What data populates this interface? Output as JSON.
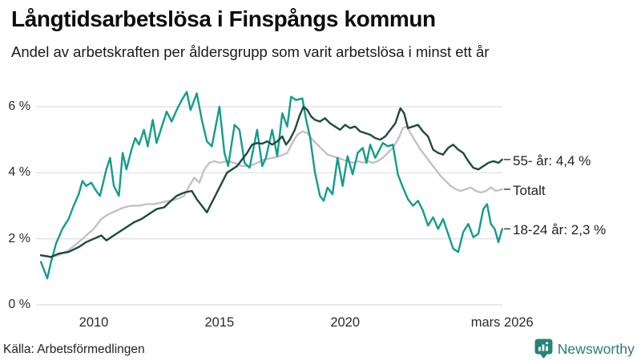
{
  "header": {
    "title": "Långtidsarbetslösa i Finspångs kommun",
    "subtitle": "Andel av arbetskraften per åldersgrupp som varit arbetslösa i minst ett år"
  },
  "footer": {
    "source": "Källa: Arbetsförmedlingen",
    "brand": "Newsworthy",
    "brand_color": "#277d76"
  },
  "chart_data": {
    "type": "line",
    "title": "Långtidsarbetslösa i Finspångs kommun",
    "subtitle": "Andel av arbetskraften per åldersgrupp som varit arbetslösa i minst ett år",
    "xlabel": "",
    "ylabel": "",
    "x_unit": "year (monthly observations)",
    "y_unit": "% av arbetskraften",
    "xlim": [
      2007.9,
      2026.25
    ],
    "ylim": [
      0,
      6.6
    ],
    "grid": "horizontal",
    "legend_position": "right-end-labels",
    "grid_color": "#dedee2",
    "yticks": [
      {
        "value": 0,
        "label": "0 %"
      },
      {
        "value": 2,
        "label": "2 %"
      },
      {
        "value": 4,
        "label": "4 %"
      },
      {
        "value": 6,
        "label": "6 %"
      }
    ],
    "xticks": [
      {
        "value": 2010,
        "label": "2010"
      },
      {
        "value": 2015,
        "label": "2015"
      },
      {
        "value": 2020,
        "label": "2020"
      },
      {
        "value": 2026.25,
        "label": "mars 2026"
      }
    ],
    "series": [
      {
        "name": "Totalt",
        "end_label": "Totalt",
        "end_value": 3.5,
        "color": "#c3c0cd",
        "points": [
          [
            2007.9,
            1.5
          ],
          [
            2008.3,
            1.45
          ],
          [
            2008.6,
            1.5
          ],
          [
            2009.0,
            1.65
          ],
          [
            2009.4,
            1.9
          ],
          [
            2009.7,
            2.1
          ],
          [
            2010.0,
            2.3
          ],
          [
            2010.3,
            2.6
          ],
          [
            2010.6,
            2.75
          ],
          [
            2010.9,
            2.85
          ],
          [
            2011.2,
            2.95
          ],
          [
            2011.5,
            3.0
          ],
          [
            2011.8,
            3.0
          ],
          [
            2012.1,
            3.05
          ],
          [
            2012.4,
            3.05
          ],
          [
            2012.7,
            3.1
          ],
          [
            2013.0,
            3.15
          ],
          [
            2013.3,
            3.2
          ],
          [
            2013.6,
            3.3
          ],
          [
            2013.8,
            3.6
          ],
          [
            2014.0,
            3.85
          ],
          [
            2014.2,
            3.7
          ],
          [
            2014.4,
            4.1
          ],
          [
            2014.6,
            4.3
          ],
          [
            2014.8,
            4.35
          ],
          [
            2015.0,
            4.3
          ],
          [
            2015.3,
            4.35
          ],
          [
            2015.6,
            4.3
          ],
          [
            2015.9,
            4.2
          ],
          [
            2016.2,
            4.2
          ],
          [
            2016.5,
            4.3
          ],
          [
            2016.8,
            4.4
          ],
          [
            2017.1,
            4.45
          ],
          [
            2017.4,
            4.5
          ],
          [
            2017.7,
            4.6
          ],
          [
            2017.9,
            4.9
          ],
          [
            2018.1,
            5.15
          ],
          [
            2018.3,
            5.25
          ],
          [
            2018.5,
            5.2
          ],
          [
            2018.7,
            5.0
          ],
          [
            2018.9,
            4.85
          ],
          [
            2019.1,
            4.7
          ],
          [
            2019.3,
            4.55
          ],
          [
            2019.5,
            4.5
          ],
          [
            2019.7,
            4.45
          ],
          [
            2019.9,
            4.4
          ],
          [
            2020.1,
            4.35
          ],
          [
            2020.3,
            4.3
          ],
          [
            2020.5,
            4.35
          ],
          [
            2020.7,
            4.3
          ],
          [
            2020.9,
            4.35
          ],
          [
            2021.1,
            4.3
          ],
          [
            2021.3,
            4.35
          ],
          [
            2021.5,
            4.45
          ],
          [
            2021.7,
            4.6
          ],
          [
            2021.9,
            4.75
          ],
          [
            2022.1,
            5.0
          ],
          [
            2022.3,
            5.35
          ],
          [
            2022.45,
            5.4
          ],
          [
            2022.6,
            5.2
          ],
          [
            2022.8,
            4.95
          ],
          [
            2023.0,
            4.7
          ],
          [
            2023.2,
            4.5
          ],
          [
            2023.4,
            4.3
          ],
          [
            2023.6,
            4.1
          ],
          [
            2023.8,
            3.9
          ],
          [
            2024.0,
            3.75
          ],
          [
            2024.2,
            3.6
          ],
          [
            2024.4,
            3.5
          ],
          [
            2024.6,
            3.45
          ],
          [
            2024.8,
            3.5
          ],
          [
            2025.0,
            3.55
          ],
          [
            2025.2,
            3.45
          ],
          [
            2025.4,
            3.4
          ],
          [
            2025.6,
            3.45
          ],
          [
            2025.8,
            3.55
          ],
          [
            2026.0,
            3.45
          ],
          [
            2026.25,
            3.5
          ]
        ]
      },
      {
        "name": "18-24 år",
        "end_label": "18-24 år: 2,3 %",
        "end_value": 2.3,
        "color": "#149c8c",
        "points": [
          [
            2007.9,
            1.3
          ],
          [
            2008.15,
            0.8
          ],
          [
            2008.3,
            1.3
          ],
          [
            2008.5,
            1.85
          ],
          [
            2008.75,
            2.3
          ],
          [
            2009.0,
            2.6
          ],
          [
            2009.2,
            3.0
          ],
          [
            2009.4,
            3.35
          ],
          [
            2009.55,
            3.75
          ],
          [
            2009.7,
            3.6
          ],
          [
            2009.9,
            3.7
          ],
          [
            2010.1,
            3.45
          ],
          [
            2010.25,
            3.3
          ],
          [
            2010.5,
            4.1
          ],
          [
            2010.65,
            4.45
          ],
          [
            2010.8,
            3.6
          ],
          [
            2011.0,
            3.3
          ],
          [
            2011.15,
            4.6
          ],
          [
            2011.3,
            4.1
          ],
          [
            2011.5,
            4.7
          ],
          [
            2011.65,
            5.05
          ],
          [
            2011.8,
            4.85
          ],
          [
            2012.0,
            5.3
          ],
          [
            2012.15,
            4.8
          ],
          [
            2012.35,
            5.6
          ],
          [
            2012.5,
            4.9
          ],
          [
            2012.75,
            5.5
          ],
          [
            2012.9,
            5.85
          ],
          [
            2013.1,
            5.55
          ],
          [
            2013.3,
            5.9
          ],
          [
            2013.5,
            6.2
          ],
          [
            2013.7,
            6.45
          ],
          [
            2013.85,
            5.9
          ],
          [
            2014.1,
            6.4
          ],
          [
            2014.3,
            5.6
          ],
          [
            2014.5,
            4.95
          ],
          [
            2014.7,
            4.8
          ],
          [
            2015.0,
            6.0
          ],
          [
            2015.2,
            4.6
          ],
          [
            2015.35,
            4.2
          ],
          [
            2015.6,
            5.45
          ],
          [
            2015.8,
            5.3
          ],
          [
            2016.0,
            4.3
          ],
          [
            2016.2,
            4.15
          ],
          [
            2016.5,
            5.3
          ],
          [
            2016.7,
            4.2
          ],
          [
            2016.85,
            4.45
          ],
          [
            2017.1,
            5.3
          ],
          [
            2017.3,
            4.5
          ],
          [
            2017.5,
            5.8
          ],
          [
            2017.7,
            5.4
          ],
          [
            2017.85,
            6.3
          ],
          [
            2018.05,
            6.2
          ],
          [
            2018.3,
            6.25
          ],
          [
            2018.45,
            5.6
          ],
          [
            2018.6,
            5.1
          ],
          [
            2018.8,
            4.0
          ],
          [
            2019.0,
            3.3
          ],
          [
            2019.15,
            3.15
          ],
          [
            2019.3,
            3.55
          ],
          [
            2019.5,
            3.35
          ],
          [
            2019.7,
            4.45
          ],
          [
            2019.9,
            3.6
          ],
          [
            2020.1,
            4.5
          ],
          [
            2020.3,
            3.95
          ],
          [
            2020.5,
            4.6
          ],
          [
            2020.7,
            4.75
          ],
          [
            2020.85,
            4.3
          ],
          [
            2021.0,
            4.85
          ],
          [
            2021.2,
            4.45
          ],
          [
            2021.5,
            4.9
          ],
          [
            2021.7,
            4.8
          ],
          [
            2021.9,
            4.85
          ],
          [
            2022.1,
            3.95
          ],
          [
            2022.3,
            3.55
          ],
          [
            2022.5,
            3.2
          ],
          [
            2022.7,
            3.0
          ],
          [
            2022.9,
            3.15
          ],
          [
            2023.1,
            2.85
          ],
          [
            2023.3,
            2.4
          ],
          [
            2023.5,
            2.65
          ],
          [
            2023.7,
            2.3
          ],
          [
            2023.9,
            2.6
          ],
          [
            2024.1,
            2.15
          ],
          [
            2024.3,
            1.7
          ],
          [
            2024.5,
            1.6
          ],
          [
            2024.7,
            2.2
          ],
          [
            2024.9,
            2.45
          ],
          [
            2025.1,
            2.05
          ],
          [
            2025.3,
            2.15
          ],
          [
            2025.5,
            2.9
          ],
          [
            2025.65,
            3.05
          ],
          [
            2025.8,
            2.45
          ],
          [
            2025.95,
            2.3
          ],
          [
            2026.1,
            1.9
          ],
          [
            2026.25,
            2.3
          ]
        ]
      },
      {
        "name": "55- år",
        "end_label": "55- år: 4,4 %",
        "end_value": 4.4,
        "color": "#1d4b3f",
        "points": [
          [
            2007.9,
            1.5
          ],
          [
            2008.3,
            1.45
          ],
          [
            2008.6,
            1.55
          ],
          [
            2009.0,
            1.6
          ],
          [
            2009.4,
            1.75
          ],
          [
            2009.7,
            1.9
          ],
          [
            2010.0,
            2.0
          ],
          [
            2010.3,
            2.1
          ],
          [
            2010.5,
            1.95
          ],
          [
            2010.8,
            2.1
          ],
          [
            2011.0,
            2.2
          ],
          [
            2011.3,
            2.35
          ],
          [
            2011.6,
            2.5
          ],
          [
            2011.9,
            2.6
          ],
          [
            2012.2,
            2.75
          ],
          [
            2012.5,
            2.9
          ],
          [
            2012.8,
            2.95
          ],
          [
            2013.0,
            3.1
          ],
          [
            2013.3,
            3.3
          ],
          [
            2013.6,
            3.4
          ],
          [
            2013.9,
            3.45
          ],
          [
            2014.1,
            3.2
          ],
          [
            2014.3,
            3.0
          ],
          [
            2014.5,
            2.8
          ],
          [
            2014.7,
            3.1
          ],
          [
            2014.9,
            3.4
          ],
          [
            2015.1,
            3.7
          ],
          [
            2015.3,
            4.0
          ],
          [
            2015.5,
            4.1
          ],
          [
            2015.7,
            4.2
          ],
          [
            2015.9,
            4.4
          ],
          [
            2016.1,
            4.6
          ],
          [
            2016.3,
            4.85
          ],
          [
            2016.5,
            4.9
          ],
          [
            2016.7,
            4.88
          ],
          [
            2016.9,
            4.95
          ],
          [
            2017.1,
            4.85
          ],
          [
            2017.3,
            4.95
          ],
          [
            2017.5,
            5.1
          ],
          [
            2017.65,
            4.85
          ],
          [
            2017.8,
            5.0
          ],
          [
            2018.0,
            5.3
          ],
          [
            2018.2,
            5.75
          ],
          [
            2018.35,
            6.0
          ],
          [
            2018.5,
            5.9
          ],
          [
            2018.65,
            5.7
          ],
          [
            2018.8,
            5.6
          ],
          [
            2019.0,
            5.55
          ],
          [
            2019.2,
            5.65
          ],
          [
            2019.4,
            5.5
          ],
          [
            2019.6,
            5.4
          ],
          [
            2019.8,
            5.3
          ],
          [
            2020.0,
            5.45
          ],
          [
            2020.2,
            5.35
          ],
          [
            2020.4,
            5.4
          ],
          [
            2020.6,
            5.25
          ],
          [
            2020.8,
            5.2
          ],
          [
            2021.0,
            5.15
          ],
          [
            2021.2,
            5.05
          ],
          [
            2021.4,
            5.0
          ],
          [
            2021.6,
            5.1
          ],
          [
            2021.8,
            5.3
          ],
          [
            2022.0,
            5.5
          ],
          [
            2022.2,
            5.95
          ],
          [
            2022.35,
            5.8
          ],
          [
            2022.5,
            5.35
          ],
          [
            2022.7,
            5.4
          ],
          [
            2022.9,
            5.45
          ],
          [
            2023.1,
            5.25
          ],
          [
            2023.3,
            5.1
          ],
          [
            2023.5,
            4.7
          ],
          [
            2023.7,
            4.6
          ],
          [
            2023.9,
            4.55
          ],
          [
            2024.1,
            4.75
          ],
          [
            2024.3,
            4.85
          ],
          [
            2024.5,
            4.7
          ],
          [
            2024.7,
            4.6
          ],
          [
            2024.9,
            4.35
          ],
          [
            2025.1,
            4.15
          ],
          [
            2025.3,
            4.1
          ],
          [
            2025.5,
            4.2
          ],
          [
            2025.7,
            4.3
          ],
          [
            2025.9,
            4.35
          ],
          [
            2026.1,
            4.3
          ],
          [
            2026.25,
            4.4
          ]
        ]
      }
    ]
  }
}
